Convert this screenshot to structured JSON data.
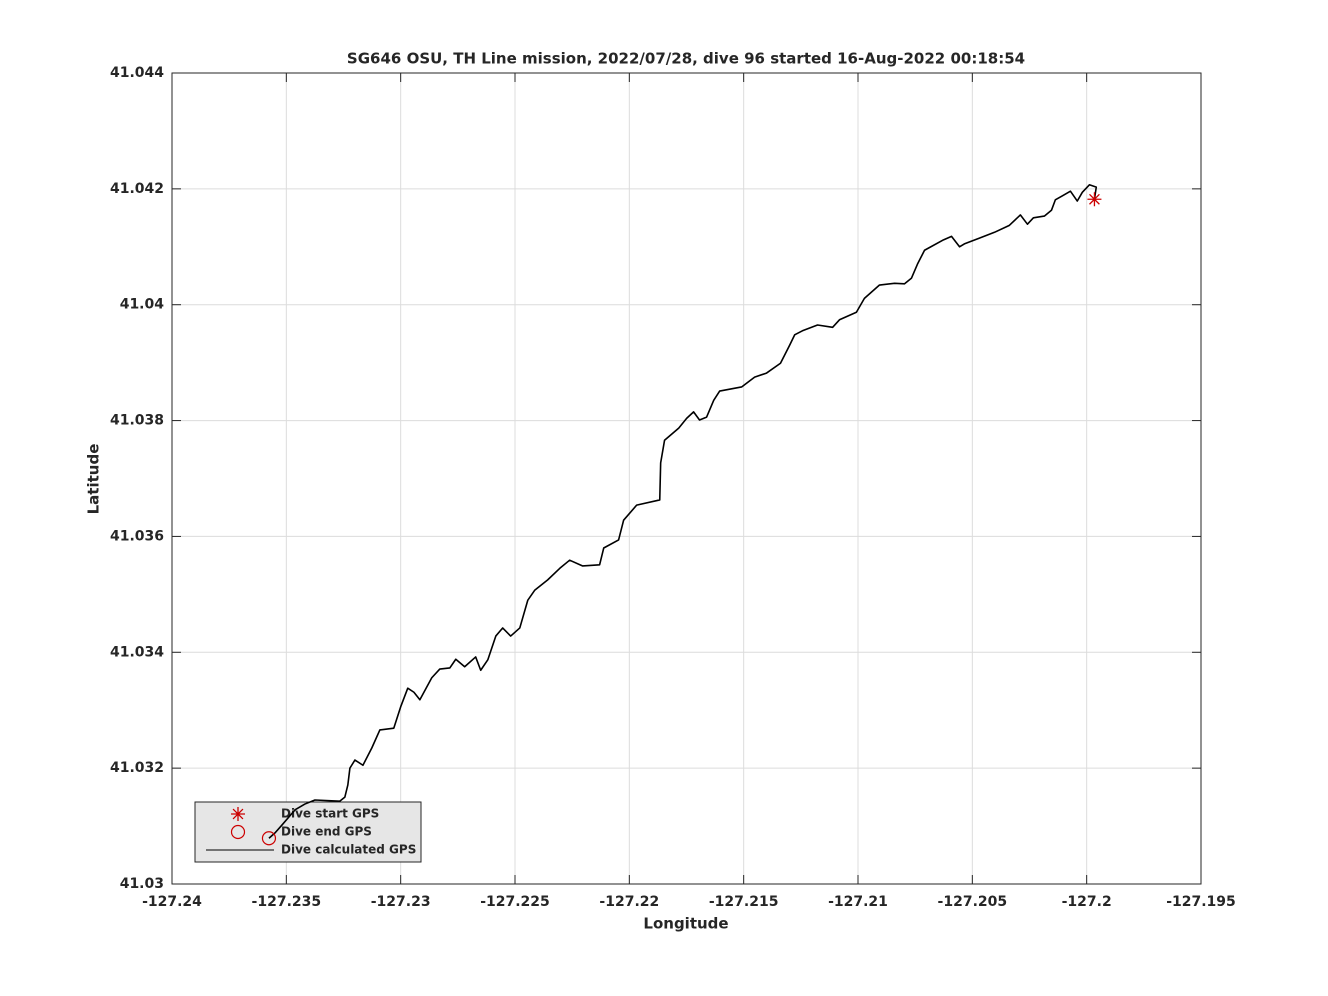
{
  "chart_data": {
    "type": "line",
    "title": "SG646 OSU, TH Line mission, 2022/07/28, dive 96 started 16-Aug-2022 00:18:54",
    "xlabel": "Longitude",
    "ylabel": "Latitude",
    "xlim": [
      -127.24,
      -127.195
    ],
    "xticks": [
      -127.24,
      -127.235,
      -127.23,
      -127.225,
      -127.22,
      -127.215,
      -127.21,
      -127.205,
      -127.2,
      -127.195
    ],
    "ylim": [
      41.03,
      41.044
    ],
    "yticks": [
      41.03,
      41.032,
      41.034,
      41.036,
      41.038,
      41.04,
      41.042,
      41.044
    ],
    "grid": true,
    "legend": "lower left",
    "x": [
      -127.19966,
      -127.19958,
      -127.19988,
      -127.20019,
      -127.20041,
      -127.20071,
      -127.20106,
      -127.20137,
      -127.20154,
      -127.20185,
      -127.20233,
      -127.20259,
      -127.2029,
      -127.20338,
      -127.20403,
      -127.20469,
      -127.20535,
      -127.20556,
      -127.20591,
      -127.20626,
      -127.20709,
      -127.2074,
      -127.20766,
      -127.20797,
      -127.2084,
      -127.20906,
      -127.20972,
      -127.21007,
      -127.21081,
      -127.21111,
      -127.21177,
      -127.21243,
      -127.21277,
      -127.21299,
      -127.21339,
      -127.214,
      -127.21452,
      -127.21509,
      -127.21605,
      -127.21631,
      -127.21662,
      -127.21693,
      -127.21719,
      -127.21749,
      -127.21784,
      -127.21846,
      -127.21863,
      -127.21867,
      -127.21968,
      -127.22025,
      -127.22047,
      -127.22112,
      -127.2213,
      -127.22204,
      -127.22261,
      -127.22304,
      -127.22357,
      -127.22414,
      -127.22444,
      -127.22479,
      -127.22519,
      -127.22554,
      -127.22584,
      -127.22619,
      -127.2265,
      -127.22672,
      -127.2272,
      -127.22759,
      -127.22785,
      -127.22829,
      -127.22864,
      -127.22916,
      -127.22942,
      -127.22969,
      -127.22999,
      -127.2303,
      -127.23091,
      -127.23126,
      -127.23165,
      -127.232,
      -127.23222,
      -127.23231,
      -127.23244,
      -127.23266,
      -127.23375,
      -127.23419,
      -127.23462,
      -127.23523,
      -127.2355,
      -127.23576
    ],
    "series": [
      {
        "name": "Dive calculated GPS",
        "color": "#000000",
        "values": [
          41.04182,
          41.04203,
          41.04207,
          41.04194,
          41.04179,
          41.04196,
          41.04188,
          41.04181,
          41.04163,
          41.04153,
          41.0415,
          41.04139,
          41.04155,
          41.04137,
          41.04125,
          41.04115,
          41.04105,
          41.041,
          41.04118,
          41.04112,
          41.04094,
          41.0407,
          41.04046,
          41.04036,
          41.04037,
          41.04034,
          41.04011,
          41.03987,
          41.03974,
          41.03961,
          41.03965,
          41.03955,
          41.03948,
          41.0393,
          41.03899,
          41.03882,
          41.03875,
          41.03858,
          41.03851,
          41.03835,
          41.03806,
          41.03801,
          41.03815,
          41.03804,
          41.03787,
          41.03766,
          41.03727,
          41.03663,
          41.03654,
          41.03628,
          41.03594,
          41.0358,
          41.03551,
          41.03549,
          41.03559,
          41.03545,
          41.03525,
          41.03507,
          41.0349,
          41.03442,
          41.03428,
          41.03442,
          41.03428,
          41.03387,
          41.03369,
          41.03392,
          41.03375,
          41.03388,
          41.03373,
          41.03371,
          41.03356,
          41.03318,
          41.03331,
          41.03338,
          41.03307,
          41.03269,
          41.03266,
          41.03235,
          41.03205,
          41.03214,
          41.032,
          41.03171,
          41.0315,
          41.03143,
          41.03145,
          41.03138,
          41.03128,
          41.031,
          41.03088,
          41.03079
        ]
      }
    ],
    "markers": [
      {
        "name": "Dive start GPS",
        "shape": "star",
        "color": "#cc0000",
        "x": -127.19966,
        "y": 41.04182
      },
      {
        "name": "Dive end GPS",
        "shape": "circle",
        "color": "#cc0000",
        "x": -127.23576,
        "y": 41.03079
      }
    ]
  }
}
